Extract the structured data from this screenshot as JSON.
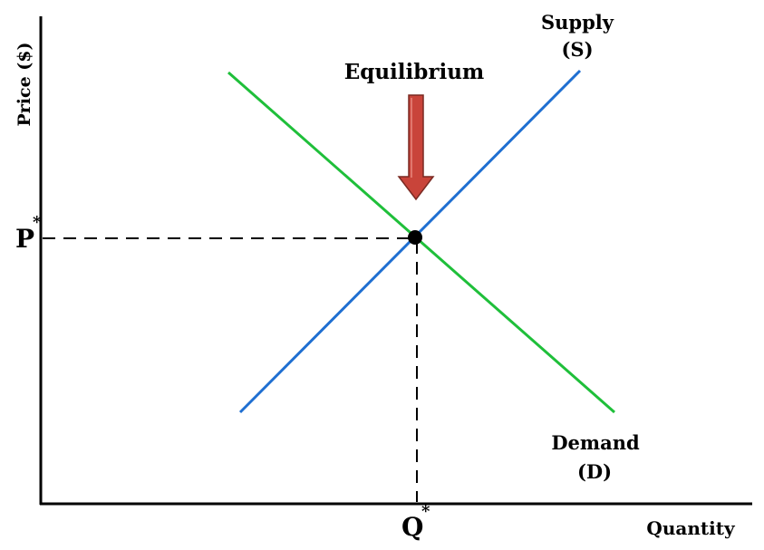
{
  "diagram": {
    "labels": {
      "y_axis": "Price ($)",
      "x_axis": "Quantity",
      "equilibrium": "Equilibrium",
      "supply": "Supply",
      "supply_abbr": "(S)",
      "demand": "Demand",
      "demand_abbr": "(D)",
      "price_symbol": "P",
      "quantity_symbol": "Q",
      "star": "*"
    },
    "colors": {
      "supply": "#1f6fd1",
      "demand": "#1fbf3a",
      "arrow": "#c9443a",
      "axis": "#000000",
      "guides": "#000000"
    }
  }
}
